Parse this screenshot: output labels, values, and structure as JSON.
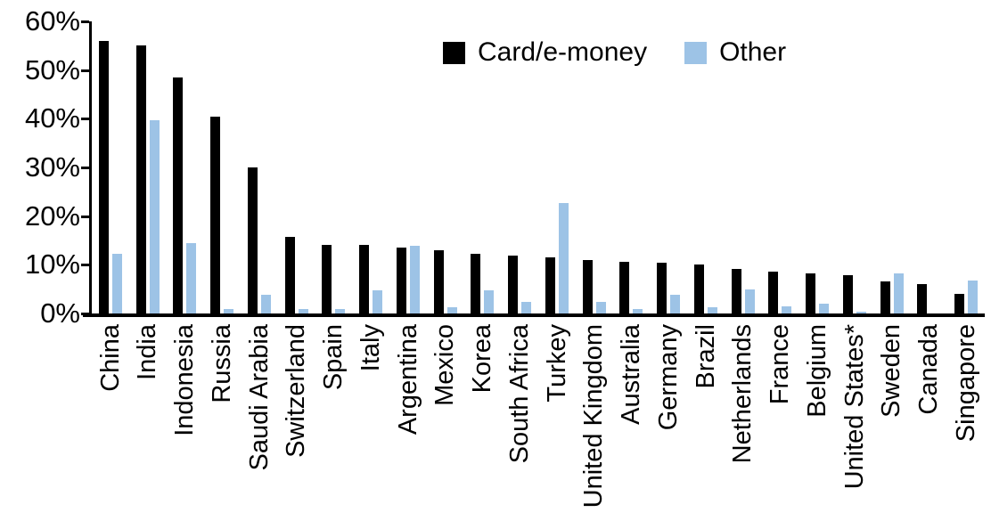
{
  "chart_data": {
    "type": "bar",
    "title": "",
    "xlabel": "",
    "ylabel": "",
    "ylim": [
      0,
      60
    ],
    "ytick_values": [
      0,
      10,
      20,
      30,
      40,
      50,
      60
    ],
    "ytick_labels": [
      "0%",
      "10%",
      "20%",
      "30%",
      "40%",
      "50%",
      "60%"
    ],
    "grid": false,
    "legend_position": "top-center",
    "categories": [
      "China",
      "India",
      "Indonesia",
      "Russia",
      "Saudi Arabia",
      "Switzerland",
      "Spain",
      "Italy",
      "Argentina",
      "Mexico",
      "Korea",
      "South Africa",
      "Turkey",
      "United Kingdom",
      "Australia",
      "Germany",
      "Brazil",
      "Netherlands",
      "France",
      "Belgium",
      "United States*",
      "Sweden",
      "Canada",
      "Singapore"
    ],
    "series": [
      {
        "name": "Card/e-money",
        "color": "#000000",
        "values": [
          56,
          55,
          48.5,
          40.5,
          30,
          15.7,
          14,
          14,
          13.5,
          13,
          12.3,
          11.8,
          11.6,
          11,
          10.7,
          10.5,
          10,
          9.2,
          8.6,
          8.2,
          7.9,
          6.6,
          6,
          4
        ]
      },
      {
        "name": "Other",
        "color": "#9DC3E6",
        "values": [
          12.3,
          39.7,
          14.5,
          1,
          3.9,
          0.9,
          1,
          4.7,
          13.9,
          1.3,
          4.7,
          2.4,
          22.6,
          2.4,
          1,
          3.9,
          1.3,
          5,
          1.5,
          2.1,
          0.4,
          8.2,
          0,
          6.7
        ]
      }
    ]
  },
  "colors": {
    "axis": "#000000",
    "background": "#FFFFFF",
    "card_series": "#000000",
    "other_series": "#9DC3E6"
  }
}
